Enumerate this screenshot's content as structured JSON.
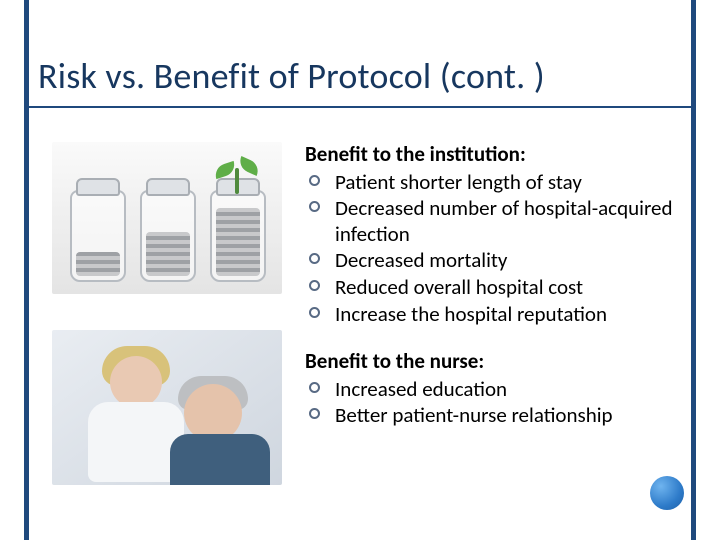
{
  "colors": {
    "accent": "#1f497d",
    "bullet_ring": "#586a84",
    "title_text": "#17375f",
    "underline": "#1f497d",
    "corner_dot": "#2e7bc9"
  },
  "title": "Risk vs. Benefit of Protocol (cont. )",
  "sections": [
    {
      "heading": "Benefit to the institution:",
      "items": [
        "Patient shorter length of stay",
        "Decreased number of hospital-acquired infection",
        "Decreased mortality",
        "Reduced overall hospital cost",
        "Increase the hospital reputation"
      ]
    },
    {
      "heading": "Benefit to the nurse:",
      "items": [
        "Increased education",
        "Better patient-nurse relationship"
      ]
    }
  ],
  "images": [
    {
      "name": "savings-jars-illustration",
      "alt": "Three glass jars with increasing coins and a sprout growing from the fullest jar"
    },
    {
      "name": "nurse-patient-photo",
      "alt": "A nurse caring for an elderly patient"
    }
  ]
}
